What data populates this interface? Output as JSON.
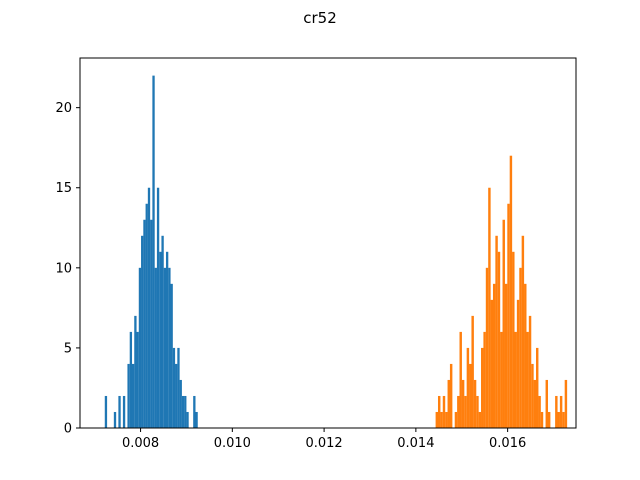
{
  "chart_data": {
    "type": "histogram",
    "title": "cr52",
    "xlabel": "",
    "ylabel": "",
    "xlim": [
      0.00668,
      0.01749
    ],
    "ylim": [
      0,
      23.1
    ],
    "xticks": [
      0.008,
      0.01,
      0.012,
      0.014,
      0.016
    ],
    "xtick_labels": [
      "0.008",
      "0.010",
      "0.012",
      "0.014",
      "0.016"
    ],
    "yticks": [
      0,
      5,
      10,
      15,
      20
    ],
    "ytick_labels": [
      "0",
      "5",
      "10",
      "15",
      "20"
    ],
    "grid": false,
    "series": [
      {
        "color": "#1f77b4",
        "bin_start": 0.00722,
        "bin_width": 4.94e-05,
        "counts": [
          2,
          0,
          0,
          0,
          1,
          0,
          2,
          0,
          2,
          0,
          4,
          6,
          4,
          7,
          6,
          10,
          12,
          13,
          14,
          15,
          13,
          22,
          10,
          15,
          11,
          12,
          10,
          11,
          10,
          9,
          5,
          4,
          5,
          3,
          2,
          2,
          1,
          0,
          0,
          2,
          1
        ]
      },
      {
        "color": "#ff7f0e",
        "bin_start": 0.01443,
        "bin_width": 5.21e-05,
        "counts": [
          1,
          2,
          1,
          2,
          1,
          3,
          4,
          0,
          1,
          2,
          6,
          3,
          2,
          5,
          4,
          7,
          3,
          2,
          1,
          5,
          6,
          10,
          15,
          8,
          9,
          12,
          11,
          6,
          13,
          9,
          14,
          17,
          11,
          6,
          8,
          10,
          12,
          9,
          6,
          7,
          4,
          3,
          5,
          2,
          1,
          0,
          3,
          1,
          0,
          0,
          2,
          1,
          2,
          1,
          3
        ]
      }
    ]
  }
}
